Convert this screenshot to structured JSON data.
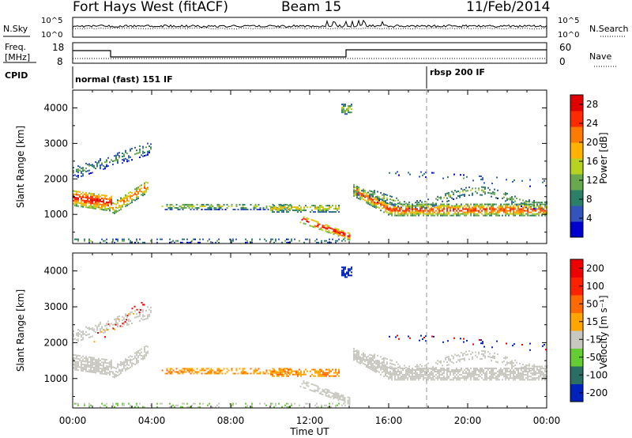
{
  "header": {
    "radar": "Fort Hays West (fitACF)",
    "beam": "Beam 15",
    "date": "11/Feb/2014"
  },
  "strips": {
    "nsky": {
      "label": "N.Sky",
      "ticks": [
        "10^5",
        "10^0"
      ]
    },
    "nsearch": {
      "label": "N.Search",
      "ticks": [
        "10^5",
        "10^0"
      ]
    },
    "freq": {
      "label_line1": "Freq.",
      "label_line2": "[MHz]",
      "ticks": [
        "18",
        "8"
      ]
    },
    "nave": {
      "label": "Nave",
      "ticks": [
        "60",
        "0"
      ]
    },
    "cpid": {
      "label": "CPID",
      "segments": [
        "normal (fast) 151 IF",
        "rbsp 200 IF"
      ]
    }
  },
  "chart_data": [
    {
      "type": "heatmap",
      "panel": "power",
      "ylabel": "Slant Range [km]",
      "xlabel": "",
      "x_ticks": [
        "00:00",
        "04:00",
        "08:00",
        "12:00",
        "16:00",
        "20:00",
        "00:00"
      ],
      "y_ticks": [
        "1000",
        "2000",
        "3000",
        "4000"
      ],
      "ylim": [
        180,
        4500
      ],
      "colorbar": {
        "label": "Power [dB]",
        "ticks": [
          "4",
          "8",
          "12",
          "16",
          "20",
          "24",
          "28"
        ],
        "range": [
          0,
          30
        ]
      }
    },
    {
      "type": "heatmap",
      "panel": "velocity",
      "ylabel": "Slant Range [km]",
      "xlabel": "Time UT",
      "x_ticks": [
        "00:00",
        "04:00",
        "08:00",
        "12:00",
        "16:00",
        "20:00",
        "00:00"
      ],
      "y_ticks": [
        "1000",
        "2000",
        "3000",
        "4000"
      ],
      "ylim": [
        180,
        4500
      ],
      "colorbar": {
        "label": "Velocity [m s⁻¹]",
        "ticks": [
          "200",
          "100",
          "50",
          "15",
          "-15",
          "-50",
          "-100",
          "-200"
        ]
      }
    }
  ],
  "colors": {
    "power_scale": [
      "#0000cc",
      "#3355bb",
      "#2d7f67",
      "#6aa84f",
      "#b7d21f",
      "#ffb300",
      "#ff7a00",
      "#ff2a00",
      "#e00000"
    ],
    "velocity_scale": [
      "#0022bb",
      "#2b6e63",
      "#66cc33",
      "#c8c8c0",
      "#ffa500",
      "#ff6a00",
      "#ff2200",
      "#ee0000"
    ],
    "gray_scatter": "#c8c8c0"
  }
}
